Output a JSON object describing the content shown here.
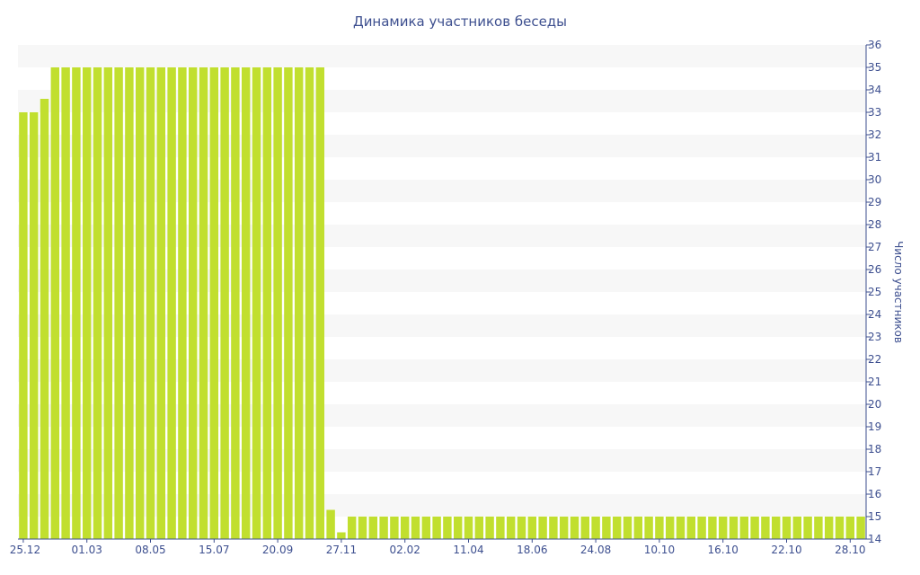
{
  "chart_data": {
    "type": "bar",
    "title": "Динамика участников беседы",
    "xlabel": "",
    "ylabel": "Число участников",
    "ylim": [
      14,
      36
    ],
    "y_axis_side": "right",
    "grid": "horizontal alternating bands",
    "legend": "none",
    "bar_color": "#c1df2f",
    "band_color": "#f7f7f7",
    "text_color": "#3d4f8f",
    "y_ticks": [
      "14",
      "15",
      "16",
      "17",
      "18",
      "19",
      "20",
      "21",
      "22",
      "23",
      "24",
      "25",
      "26",
      "27",
      "28",
      "29",
      "30",
      "31",
      "32",
      "33",
      "34",
      "35",
      "36"
    ],
    "x_tick_labels": [
      {
        "label": "25.12",
        "index": 0
      },
      {
        "label": "01.03",
        "index": 6
      },
      {
        "label": "08.05",
        "index": 12
      },
      {
        "label": "15.07",
        "index": 18
      },
      {
        "label": "20.09",
        "index": 24
      },
      {
        "label": "27.11",
        "index": 30
      },
      {
        "label": "02.02",
        "index": 36
      },
      {
        "label": "11.04",
        "index": 42
      },
      {
        "label": "18.06",
        "index": 48
      },
      {
        "label": "24.08",
        "index": 54
      },
      {
        "label": "10.10",
        "index": 60
      },
      {
        "label": "16.10",
        "index": 66
      },
      {
        "label": "22.10",
        "index": 72
      },
      {
        "label": "28.10",
        "index": 78
      }
    ],
    "values": [
      33,
      33,
      33.6,
      35,
      35,
      35,
      35,
      35,
      35,
      35,
      35,
      35,
      35,
      35,
      35,
      35,
      35,
      35,
      35,
      35,
      35,
      35,
      35,
      35,
      35,
      35,
      35,
      35,
      35,
      15.3,
      14.3,
      15,
      15,
      15,
      15,
      15,
      15,
      15,
      15,
      15,
      15,
      15,
      15,
      15,
      15,
      15,
      15,
      15,
      15,
      15,
      15,
      15,
      15,
      15,
      15,
      15,
      15,
      15,
      15,
      15,
      15,
      15,
      15,
      15,
      15,
      15,
      15,
      15,
      15,
      15,
      15,
      15,
      15,
      15,
      15,
      15,
      15,
      15,
      15,
      15
    ]
  }
}
